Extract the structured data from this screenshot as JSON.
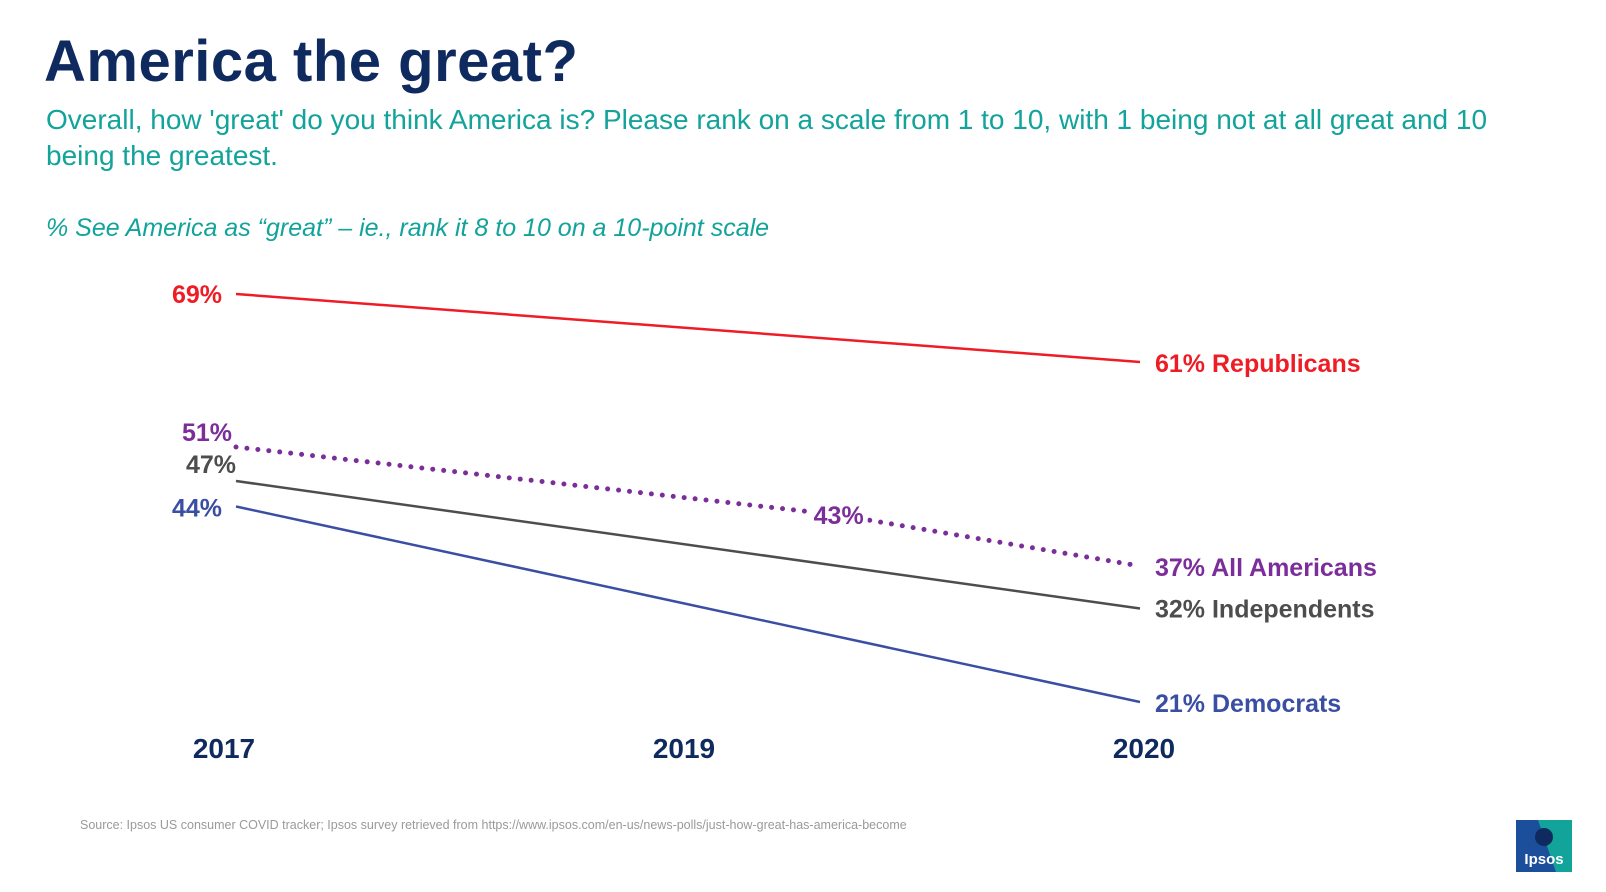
{
  "title": "America the great?",
  "question": "Overall, how 'great' do you think America is? Please rank on a scale from 1 to 10, with 1 being not at all great and 10 being the greatest.",
  "measure": "% See America as “great” – ie., rank it 8 to 10 on a 10-point scale",
  "source": "Source: Ipsos US consumer COVID tracker; Ipsos survey retrieved from https://www.ipsos.com/en-us/news-polls/just-how-great-has-america-become",
  "logo_text": "Ipsos",
  "colors": {
    "title": "#0e2a5e",
    "subtitle": "#12a39a",
    "republicans": "#ee1c25",
    "all_americans": "#7b2e9a",
    "independents": "#4d4d4d",
    "democrats": "#3a4ea3",
    "logo_bg": "#1b4f9c",
    "logo_accent": "#12a39a"
  },
  "chart_data": {
    "type": "line",
    "title": "",
    "xlabel": "",
    "ylabel": "",
    "categories": [
      "2017",
      "2019",
      "2020"
    ],
    "x": [
      2017,
      2019,
      2020
    ],
    "ylim": [
      0,
      100
    ],
    "series": [
      {
        "key": "republicans",
        "name": "Republicans",
        "x": [
          2017,
          2020
        ],
        "values": [
          69,
          61
        ],
        "start_label": "69%",
        "end_label": "61%",
        "style": "solid",
        "mid_label": null
      },
      {
        "key": "all_americans",
        "name": "All Americans",
        "x": [
          2017,
          2019,
          2020
        ],
        "values": [
          51,
          43,
          37
        ],
        "start_label": "51%",
        "end_label": "37%",
        "style": "dotted",
        "mid_label": "43%"
      },
      {
        "key": "independents",
        "name": "Independents",
        "x": [
          2017,
          2020
        ],
        "values": [
          47,
          32
        ],
        "start_label": "47%",
        "end_label": "32%",
        "style": "solid",
        "mid_label": null
      },
      {
        "key": "democrats",
        "name": "Democrats",
        "x": [
          2017,
          2020
        ],
        "values": [
          44,
          21
        ],
        "start_label": "44%",
        "end_label": "21%",
        "style": "solid",
        "mid_label": null
      }
    ]
  }
}
